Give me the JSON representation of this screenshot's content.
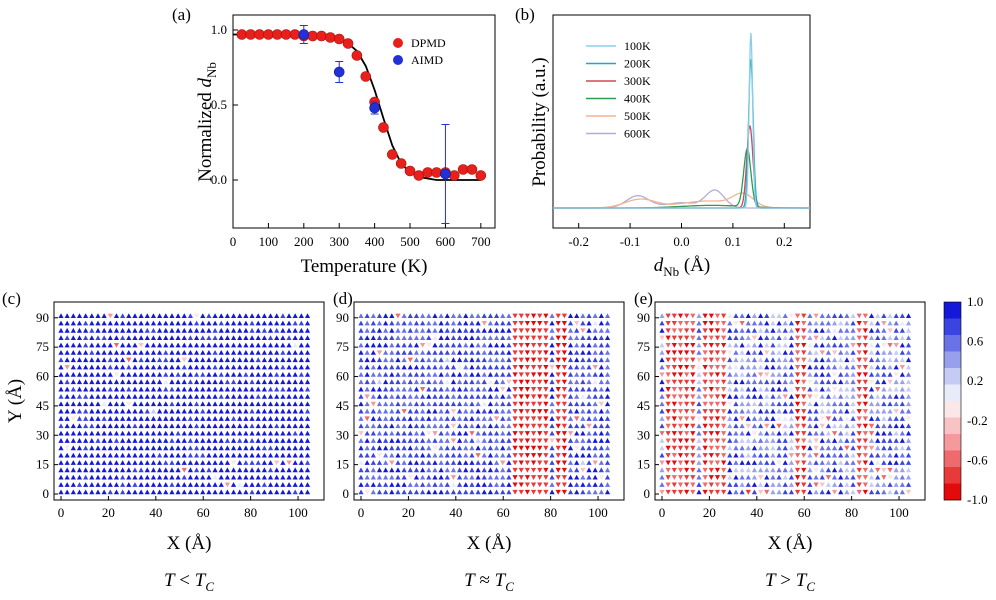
{
  "chart_data": [
    {
      "panel": "(a)",
      "type": "scatter",
      "xlabel": "Temperature (K)",
      "ylabel_main": "Normalized ",
      "ylabel_var": "d",
      "ylabel_sub": "Nb",
      "xlim": [
        0,
        740
      ],
      "ylim": [
        -0.32,
        1.1
      ],
      "xticks": [
        0,
        100,
        200,
        300,
        400,
        500,
        600,
        700
      ],
      "yticks": [
        0.0,
        0.5,
        1.0
      ],
      "ytick_labels": [
        "0.0",
        "0.5",
        "1.0"
      ],
      "legend_position": "top-right",
      "series": [
        {
          "name": "DPMD",
          "color": "#e8201c",
          "x": [
            25,
            50,
            75,
            100,
            125,
            150,
            175,
            200,
            225,
            250,
            275,
            300,
            325,
            350,
            375,
            400,
            425,
            450,
            475,
            500,
            525,
            550,
            575,
            600,
            625,
            650,
            675,
            700
          ],
          "y": [
            0.97,
            0.97,
            0.97,
            0.97,
            0.97,
            0.97,
            0.97,
            0.96,
            0.96,
            0.96,
            0.95,
            0.94,
            0.91,
            0.83,
            0.69,
            0.52,
            0.35,
            0.17,
            0.11,
            0.06,
            0.03,
            0.05,
            0.05,
            0.05,
            0.03,
            0.07,
            0.07,
            0.03
          ]
        },
        {
          "name": "AIMD",
          "color": "#2230d8",
          "x": [
            200,
            300,
            400,
            600
          ],
          "y": [
            0.97,
            0.72,
            0.48,
            0.04
          ],
          "err": [
            0.06,
            0.07,
            0.04,
            0.33
          ]
        },
        {
          "name": "fit",
          "type": "line",
          "color": "#000000",
          "x": [
            0,
            25,
            50,
            75,
            100,
            125,
            150,
            175,
            200,
            225,
            250,
            275,
            300,
            325,
            350,
            375,
            400,
            425,
            450,
            475,
            500,
            525,
            550,
            575,
            600,
            625,
            650,
            675,
            700
          ],
          "y": [
            0.97,
            0.97,
            0.97,
            0.97,
            0.97,
            0.97,
            0.97,
            0.97,
            0.97,
            0.97,
            0.96,
            0.95,
            0.94,
            0.91,
            0.86,
            0.76,
            0.6,
            0.41,
            0.23,
            0.11,
            0.05,
            0.02,
            0.01,
            0.0,
            0.0,
            0.0,
            0.0,
            0.0,
            0.0
          ]
        }
      ]
    },
    {
      "panel": "(b)",
      "type": "line",
      "xlabel_var": "d",
      "xlabel_sub": "Nb",
      "xlabel_unit": " (Å)",
      "ylabel": "Probability (a.u.)",
      "xlim": [
        -0.25,
        0.25
      ],
      "xticks": [
        -0.2,
        -0.1,
        0.0,
        0.1,
        0.2
      ],
      "xtick_labels": [
        "-0.2",
        "-0.1",
        "0.0",
        "0.1",
        "0.2"
      ],
      "grid": false,
      "legend_position": "top-left",
      "series": [
        {
          "name": "100K",
          "color": "#8ccde8",
          "main_mu": 0.135,
          "main_sigma": 0.0035,
          "main_amp": 1.0,
          "side": []
        },
        {
          "name": "200K",
          "color": "#21a7bf",
          "main_mu": 0.135,
          "main_sigma": 0.0045,
          "main_amp": 0.85,
          "side": []
        },
        {
          "name": "300K",
          "color": "#d2455a",
          "main_mu": 0.133,
          "main_sigma": 0.006,
          "main_amp": 0.47,
          "side": []
        },
        {
          "name": "400K",
          "color": "#2f9a55",
          "main_mu": 0.128,
          "main_sigma": 0.007,
          "main_amp": 0.33,
          "side": [
            {
              "mu": 0.06,
              "sigma": 0.06,
              "amp": 0.015
            }
          ]
        },
        {
          "name": "500K",
          "color": "#f0b48e",
          "main_mu": 0.12,
          "main_sigma": 0.02,
          "main_amp": 0.07,
          "side": [
            {
              "mu": -0.08,
              "sigma": 0.03,
              "amp": 0.05
            },
            {
              "mu": 0.05,
              "sigma": 0.05,
              "amp": 0.04
            }
          ]
        },
        {
          "name": "600K",
          "color": "#b3acd6",
          "main_mu": 0.065,
          "main_sigma": 0.018,
          "main_amp": 0.1,
          "side": [
            {
              "mu": -0.085,
              "sigma": 0.022,
              "amp": 0.07
            },
            {
              "mu": 0.0,
              "sigma": 0.03,
              "amp": 0.03
            }
          ]
        }
      ]
    },
    {
      "panel": "(c)",
      "type": "heatmap",
      "caption_parts": [
        "T",
        " < ",
        "T",
        "C"
      ],
      "xlabel": "X (Å)",
      "ylabel": "Y (Å)",
      "xticks": [
        0,
        20,
        40,
        60,
        80,
        100
      ],
      "yticks": [
        0,
        15,
        30,
        45,
        60,
        75,
        90
      ],
      "red_bands": [],
      "noise": 0.05
    },
    {
      "panel": "(d)",
      "type": "heatmap",
      "caption_parts": [
        "T",
        " ≈ ",
        "T",
        "C"
      ],
      "xlabel": "X (Å)",
      "ylabel": "",
      "xticks": [
        0,
        20,
        40,
        60,
        80,
        100
      ],
      "yticks": [
        0,
        15,
        30,
        45,
        60,
        75,
        90
      ],
      "red_bands": [
        [
          64,
          78
        ],
        [
          82,
          86
        ]
      ],
      "noise": 0.18
    },
    {
      "panel": "(e)",
      "type": "heatmap",
      "caption_parts": [
        "T",
        " > ",
        "T",
        "C"
      ],
      "xlabel": "X (Å)",
      "ylabel": "",
      "xticks": [
        0,
        20,
        40,
        60,
        80,
        100
      ],
      "yticks": [
        0,
        15,
        30,
        45,
        60,
        75,
        90
      ],
      "red_bands": [
        [
          2,
          14
        ],
        [
          18,
          28
        ],
        [
          55,
          62
        ],
        [
          82,
          88
        ]
      ],
      "noise": 0.35
    }
  ],
  "colorbar": {
    "ticks": [
      "1.0",
      "0.6",
      "0.2",
      "-0.2",
      "-0.6",
      "-1.0"
    ],
    "colors": [
      "#1418d8",
      "#3a44e0",
      "#6a72e8",
      "#98a0ee",
      "#c6cbf5",
      "#e8ebfa",
      "#fbe6e8",
      "#f8c3c5",
      "#f49a9c",
      "#ee6a6c",
      "#e8393b",
      "#e30a0c"
    ]
  }
}
